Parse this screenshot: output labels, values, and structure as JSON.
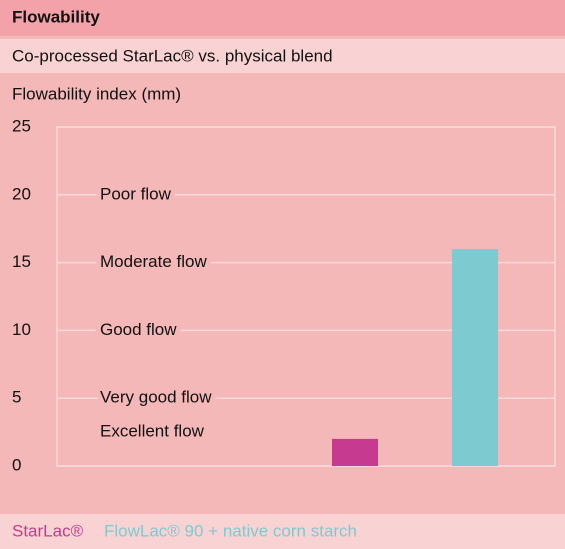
{
  "chart_data": {
    "type": "bar",
    "title": "Flowability",
    "subtitle": "Co-processed StarLac® vs. physical blend",
    "y_label": "Flowability index (mm)",
    "categories": [
      "StarLac®",
      "FlowLac® 90 + native corn starch"
    ],
    "values": [
      2,
      16
    ],
    "colors": [
      "#c63a8f",
      "#7dcbd1"
    ],
    "ylim": [
      0,
      25
    ],
    "yticks": [
      0,
      5,
      10,
      15,
      20,
      25
    ],
    "grid": true,
    "annotations": [
      {
        "text": "Poor flow",
        "y": 20
      },
      {
        "text": "Moderate flow",
        "y": 15
      },
      {
        "text": "Good flow",
        "y": 10
      },
      {
        "text": "Very good flow",
        "y": 5
      },
      {
        "text": "Excellent flow",
        "y": 2.5
      }
    ]
  }
}
